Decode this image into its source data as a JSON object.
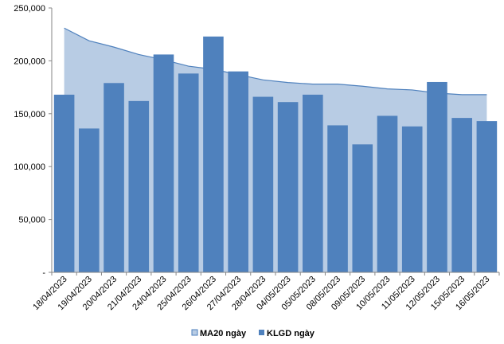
{
  "chart_data": {
    "type": "bar",
    "categories": [
      "18/04/2023",
      "19/04/2023",
      "20/04/2023",
      "21/04/2023",
      "24/04/2023",
      "25/04/2023",
      "26/04/2023",
      "27/04/2023",
      "28/04/2023",
      "04/05/2023",
      "05/05/2023",
      "08/05/2023",
      "09/05/2023",
      "10/05/2023",
      "11/05/2023",
      "12/05/2023",
      "15/05/2023",
      "16/05/2023"
    ],
    "series": [
      {
        "name": "MA20 ngày",
        "type": "area",
        "color": "#b8cce4",
        "line_color": "#4f81bd",
        "values": [
          231000,
          219000,
          213000,
          206000,
          201000,
          195000,
          192000,
          187000,
          182000,
          179500,
          178000,
          178000,
          176000,
          173500,
          172500,
          169500,
          168000,
          168000
        ]
      },
      {
        "name": "KLGD ngày",
        "type": "bar",
        "color": "#4f81bd",
        "values": [
          168000,
          136000,
          179000,
          162000,
          206000,
          188000,
          223000,
          190000,
          166000,
          161000,
          168000,
          139000,
          121000,
          148000,
          138000,
          180000,
          146000,
          143000
        ]
      }
    ],
    "y_ticks": [
      {
        "value": 0,
        "label": "-"
      },
      {
        "value": 50000,
        "label": "50,000"
      },
      {
        "value": 100000,
        "label": "100,000"
      },
      {
        "value": 150000,
        "label": "150,000"
      },
      {
        "value": 200000,
        "label": "200,000"
      },
      {
        "value": 250000,
        "label": "250,000"
      }
    ],
    "ylim": [
      0,
      250000
    ],
    "grid": false,
    "legend_position": "bottom"
  }
}
